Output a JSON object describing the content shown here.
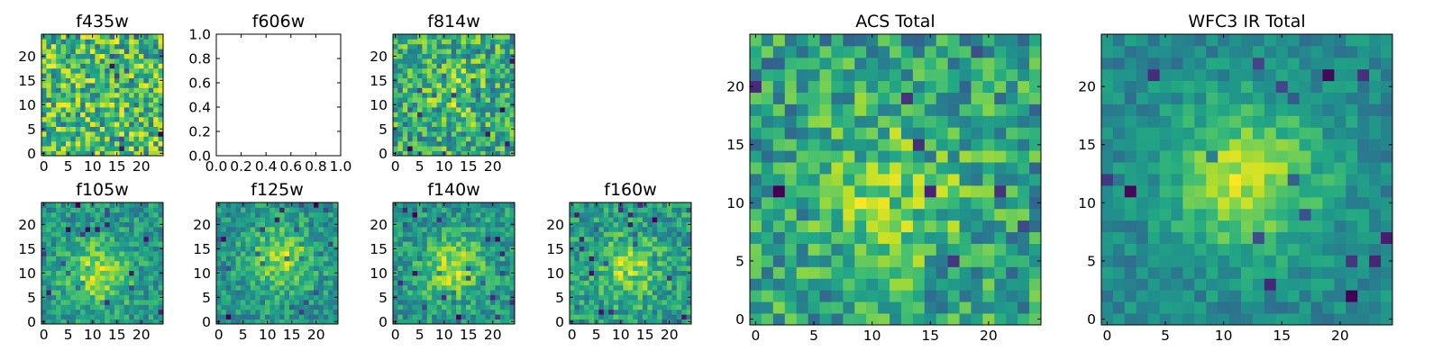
{
  "chart_data": [
    {
      "type": "heatmap",
      "title": "f435w",
      "grid_size": 25,
      "xticks": [
        0,
        5,
        10,
        15,
        20
      ],
      "yticks": [
        0,
        5,
        10,
        15,
        20
      ],
      "colormap": "viridis",
      "seed": 435,
      "peak": [
        12,
        12
      ],
      "peak_strength": 0.0,
      "noise": 1.0
    },
    {
      "type": "empty",
      "title": "f606w",
      "xticks": [
        "0.0",
        "0.2",
        "0.4",
        "0.6",
        "0.8",
        "1.0"
      ],
      "yticks": [
        "0.0",
        "0.2",
        "0.4",
        "0.6",
        "0.8",
        "1.0"
      ]
    },
    {
      "type": "heatmap",
      "title": "f814w",
      "grid_size": 25,
      "xticks": [
        0,
        5,
        10,
        15,
        20
      ],
      "yticks": [
        0,
        5,
        10,
        15,
        20
      ],
      "colormap": "viridis",
      "seed": 814,
      "peak": [
        12,
        13
      ],
      "peak_strength": 0.25,
      "noise": 0.9
    },
    {
      "type": "heatmap",
      "title": "f105w",
      "grid_size": 25,
      "xticks": [
        0,
        5,
        10,
        15,
        20
      ],
      "yticks": [
        0,
        5,
        10,
        15,
        20
      ],
      "colormap": "viridis",
      "seed": 105,
      "peak": [
        11,
        10
      ],
      "peak_strength": 0.55,
      "noise": 0.55
    },
    {
      "type": "heatmap",
      "title": "f125w",
      "grid_size": 25,
      "xticks": [
        0,
        5,
        10,
        15,
        20
      ],
      "yticks": [
        0,
        5,
        10,
        15,
        20
      ],
      "colormap": "viridis",
      "seed": 125,
      "peak": [
        13,
        13
      ],
      "peak_strength": 0.5,
      "noise": 0.55
    },
    {
      "type": "heatmap",
      "title": "f140w",
      "grid_size": 25,
      "xticks": [
        0,
        5,
        10,
        15,
        20
      ],
      "yticks": [
        0,
        5,
        10,
        15,
        20
      ],
      "colormap": "viridis",
      "seed": 140,
      "peak": [
        12,
        11
      ],
      "peak_strength": 0.5,
      "noise": 0.55
    },
    {
      "type": "heatmap",
      "title": "f160w",
      "grid_size": 25,
      "xticks": [
        0,
        5,
        10,
        15,
        20
      ],
      "yticks": [
        0,
        5,
        10,
        15,
        20
      ],
      "colormap": "viridis",
      "seed": 160,
      "peak": [
        12,
        11
      ],
      "peak_strength": 0.45,
      "noise": 0.6
    },
    {
      "type": "heatmap",
      "title": "ACS Total",
      "grid_size": 25,
      "xticks": [
        0,
        5,
        10,
        15,
        20
      ],
      "yticks": [
        0,
        5,
        10,
        15,
        20
      ],
      "colormap": "viridis",
      "seed": 999,
      "peak": [
        12,
        11
      ],
      "peak_strength": 0.35,
      "noise": 0.75
    },
    {
      "type": "heatmap",
      "title": "WFC3 IR Total",
      "grid_size": 25,
      "xticks": [
        0,
        5,
        10,
        15,
        20
      ],
      "yticks": [
        0,
        5,
        10,
        15,
        20
      ],
      "colormap": "viridis",
      "seed": 777,
      "peak": [
        12,
        12
      ],
      "peak_strength": 0.7,
      "noise": 0.4
    }
  ]
}
